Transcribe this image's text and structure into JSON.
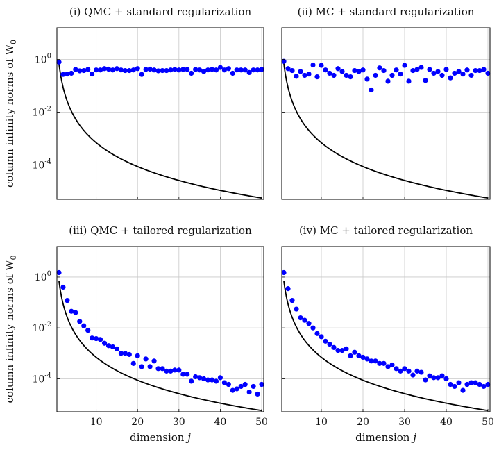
{
  "ylabel": "column infinity norms of W",
  "ylabel_sub": "0",
  "xlabel": "dimension",
  "xlabel_var": "j",
  "chart_data": [
    {
      "type": "scatter",
      "title": "(i) QMC + standard regularization",
      "ylog": true,
      "ylim_exp": [
        -5.3,
        1.2
      ],
      "xlim": [
        0.5,
        50.5
      ],
      "series": [
        {
          "kind": "points",
          "x": [
            1,
            2,
            3,
            4,
            5,
            6,
            7,
            8,
            9,
            10,
            11,
            12,
            13,
            14,
            15,
            16,
            17,
            18,
            19,
            20,
            21,
            22,
            23,
            24,
            25,
            26,
            27,
            28,
            29,
            30,
            31,
            32,
            33,
            34,
            35,
            36,
            37,
            38,
            39,
            40,
            41,
            42,
            43,
            44,
            45,
            46,
            47,
            48,
            49,
            50
          ],
          "y": [
            0.8,
            0.27,
            0.28,
            0.3,
            0.42,
            0.37,
            0.38,
            0.42,
            0.28,
            0.4,
            0.4,
            0.45,
            0.43,
            0.4,
            0.45,
            0.4,
            0.38,
            0.38,
            0.4,
            0.45,
            0.27,
            0.42,
            0.43,
            0.4,
            0.37,
            0.38,
            0.38,
            0.4,
            0.42,
            0.4,
            0.42,
            0.42,
            0.3,
            0.42,
            0.4,
            0.35,
            0.4,
            0.42,
            0.4,
            0.5,
            0.4,
            0.45,
            0.3,
            0.4,
            0.4,
            0.4,
            0.32,
            0.4,
            0.4,
            0.42
          ]
        },
        {
          "kind": "curve",
          "formula": "0.7*j^-3",
          "x_start": 1,
          "x_end": 50
        }
      ]
    },
    {
      "type": "scatter",
      "title": "(ii) MC + standard regularization",
      "ylog": true,
      "ylim_exp": [
        -5.3,
        1.2
      ],
      "xlim": [
        0.5,
        50.5
      ],
      "series": [
        {
          "kind": "points",
          "x": [
            1,
            2,
            3,
            4,
            5,
            6,
            7,
            8,
            9,
            10,
            11,
            12,
            13,
            14,
            15,
            16,
            17,
            18,
            19,
            20,
            21,
            22,
            23,
            24,
            25,
            26,
            27,
            28,
            29,
            30,
            31,
            32,
            33,
            34,
            35,
            36,
            37,
            38,
            39,
            40,
            41,
            42,
            43,
            44,
            45,
            46,
            47,
            48,
            49,
            50
          ],
          "y": [
            0.85,
            0.45,
            0.38,
            0.23,
            0.35,
            0.25,
            0.28,
            0.62,
            0.22,
            0.6,
            0.4,
            0.3,
            0.25,
            0.45,
            0.35,
            0.25,
            0.22,
            0.38,
            0.35,
            0.4,
            0.18,
            0.07,
            0.25,
            0.48,
            0.38,
            0.15,
            0.25,
            0.4,
            0.28,
            0.6,
            0.15,
            0.38,
            0.42,
            0.5,
            0.16,
            0.42,
            0.3,
            0.35,
            0.25,
            0.42,
            0.2,
            0.3,
            0.35,
            0.28,
            0.4,
            0.25,
            0.38,
            0.38,
            0.42,
            0.3
          ]
        },
        {
          "kind": "curve",
          "formula": "0.7*j^-3",
          "x_start": 1,
          "x_end": 50
        }
      ]
    },
    {
      "type": "scatter",
      "title": "(iii) QMC + tailored regularization",
      "ylog": true,
      "ylim_exp": [
        -5.3,
        1.2
      ],
      "xlim": [
        0.5,
        50.5
      ],
      "series": [
        {
          "kind": "points",
          "x": [
            1,
            2,
            3,
            4,
            5,
            6,
            7,
            8,
            9,
            10,
            11,
            12,
            13,
            14,
            15,
            16,
            17,
            18,
            19,
            20,
            21,
            22,
            23,
            24,
            25,
            26,
            27,
            28,
            29,
            30,
            31,
            32,
            33,
            34,
            35,
            36,
            37,
            38,
            39,
            40,
            41,
            42,
            43,
            44,
            45,
            46,
            47,
            48,
            49,
            50
          ],
          "y": [
            1.5,
            0.4,
            0.12,
            0.045,
            0.04,
            0.018,
            0.012,
            0.008,
            0.004,
            0.0038,
            0.0035,
            0.0025,
            0.002,
            0.0018,
            0.0015,
            0.001,
            0.001,
            0.0009,
            0.0004,
            0.0008,
            0.0003,
            0.0006,
            0.0003,
            0.0005,
            0.00025,
            0.00025,
            0.0002,
            0.0002,
            0.00022,
            0.00022,
            0.00015,
            0.00015,
            8e-05,
            0.00012,
            0.00011,
            0.0001,
            9e-05,
            9e-05,
            8e-05,
            0.00011,
            7e-05,
            6e-05,
            3.5e-05,
            4e-05,
            5e-05,
            6e-05,
            3e-05,
            5e-05,
            2.5e-05,
            6e-05
          ]
        },
        {
          "kind": "curve",
          "formula": "0.7*j^-3",
          "x_start": 1,
          "x_end": 50
        }
      ]
    },
    {
      "type": "scatter",
      "title": "(iv) MC + tailored regularization",
      "ylog": true,
      "ylim_exp": [
        -5.3,
        1.2
      ],
      "xlim": [
        0.5,
        50.5
      ],
      "series": [
        {
          "kind": "points",
          "x": [
            1,
            2,
            3,
            4,
            5,
            6,
            7,
            8,
            9,
            10,
            11,
            12,
            13,
            14,
            15,
            16,
            17,
            18,
            19,
            20,
            21,
            22,
            23,
            24,
            25,
            26,
            27,
            28,
            29,
            30,
            31,
            32,
            33,
            34,
            35,
            36,
            37,
            38,
            39,
            40,
            41,
            42,
            43,
            44,
            45,
            46,
            47,
            48,
            49,
            50
          ],
          "y": [
            1.5,
            0.35,
            0.12,
            0.055,
            0.025,
            0.02,
            0.015,
            0.01,
            0.006,
            0.0045,
            0.003,
            0.0023,
            0.0017,
            0.0013,
            0.0013,
            0.0015,
            0.0008,
            0.0011,
            0.0008,
            0.0007,
            0.0006,
            0.0005,
            0.0005,
            0.0004,
            0.0004,
            0.0003,
            0.00035,
            0.00025,
            0.0002,
            0.00025,
            0.0002,
            0.00014,
            0.0002,
            0.00018,
            9e-05,
            0.00013,
            0.00011,
            0.00011,
            0.00013,
            0.0001,
            6e-05,
            5e-05,
            7e-05,
            3.5e-05,
            6e-05,
            7e-05,
            7e-05,
            6e-05,
            5e-05,
            6e-05
          ]
        },
        {
          "kind": "curve",
          "formula": "0.7*j^-3",
          "x_start": 1,
          "x_end": 50
        }
      ]
    }
  ],
  "x_ticks": [
    10,
    20,
    30,
    40,
    50
  ],
  "y_ticks_exp": [
    0,
    -2,
    -4
  ],
  "y_tick_base": "10",
  "colors": {
    "points": "#0000ff",
    "curve": "#000000",
    "grid": "#c8c8c8"
  }
}
